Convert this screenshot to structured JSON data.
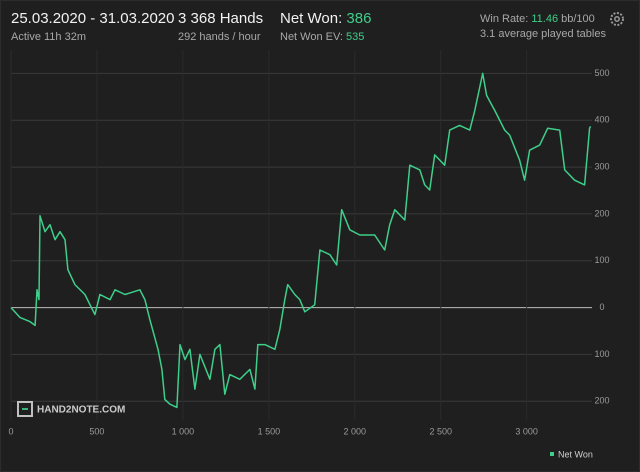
{
  "header": {
    "date_range": "25.03.2020 - 31.03.2020",
    "active": "Active 11h 32m",
    "hands": "3 368 Hands",
    "hands_per_hour": "292 hands / hour",
    "net_won_label": "Net Won:",
    "net_won_value": "386",
    "net_won_ev_label": "Net Won  EV:",
    "net_won_ev_value": "535",
    "win_rate_label": "Win Rate:",
    "win_rate_value": "11.46",
    "win_rate_unit": "bb/100",
    "tables": "3.1 average played tables"
  },
  "watermark": "HAND2NOTE.COM",
  "chart_data": {
    "type": "line",
    "xlim": [
      0,
      3380
    ],
    "ylim": [
      -240,
      550
    ],
    "grid": true,
    "legend": "bottom-right",
    "xticks": [
      0,
      500,
      {
        "value": 1000,
        "label": "1 000"
      },
      {
        "value": 1500,
        "label": "1 500"
      },
      {
        "value": 2000,
        "label": "2 000"
      },
      {
        "value": 2500,
        "label": "2 500"
      },
      {
        "value": 3000,
        "label": "3 000"
      }
    ],
    "yticks": [
      {
        "value": -200,
        "label": "200"
      },
      {
        "value": -100,
        "label": "100"
      },
      0,
      100,
      200,
      300,
      400,
      500
    ],
    "series": [
      {
        "name": "Net Won",
        "color": "#3ecf8a",
        "x": [
          0,
          52,
          110,
          140,
          151,
          163,
          169,
          198,
          227,
          256,
          285,
          314,
          331,
          372,
          430,
          488,
          517,
          576,
          605,
          663,
          750,
          779,
          808,
          855,
          878,
          895,
          924,
          965,
          983,
          1012,
          1041,
          1070,
          1099,
          1157,
          1186,
          1215,
          1244,
          1273,
          1331,
          1390,
          1419,
          1436,
          1477,
          1535,
          1564,
          1593,
          1610,
          1651,
          1680,
          1709,
          1767,
          1797,
          1855,
          1895,
          1924,
          1971,
          2029,
          2116,
          2174,
          2203,
          2233,
          2291,
          2320,
          2378,
          2407,
          2436,
          2465,
          2523,
          2552,
          2610,
          2669,
          2698,
          2744,
          2767,
          2814,
          2872,
          2901,
          2959,
          2988,
          3017,
          3076,
          3122,
          3192,
          3221,
          3279,
          3337,
          3366,
          3372
        ],
        "values": [
          0,
          -21,
          -30,
          -38,
          38,
          17,
          196,
          162,
          177,
          145,
          162,
          145,
          81,
          49,
          28,
          -15,
          28,
          17,
          38,
          28,
          38,
          17,
          -26,
          -89,
          -132,
          -196,
          -206,
          -213,
          -79,
          -111,
          -89,
          -174,
          -100,
          -153,
          -89,
          -79,
          -185,
          -143,
          -153,
          -132,
          -174,
          -79,
          -79,
          -89,
          -47,
          17,
          49,
          28,
          17,
          -9,
          6,
          123,
          113,
          91,
          209,
          166,
          155,
          155,
          123,
          177,
          209,
          187,
          304,
          294,
          262,
          251,
          326,
          304,
          379,
          389,
          379,
          421,
          500,
          453,
          421,
          379,
          368,
          315,
          272,
          336,
          347,
          383,
          379,
          294,
          272,
          262,
          383,
          387
        ]
      }
    ]
  }
}
